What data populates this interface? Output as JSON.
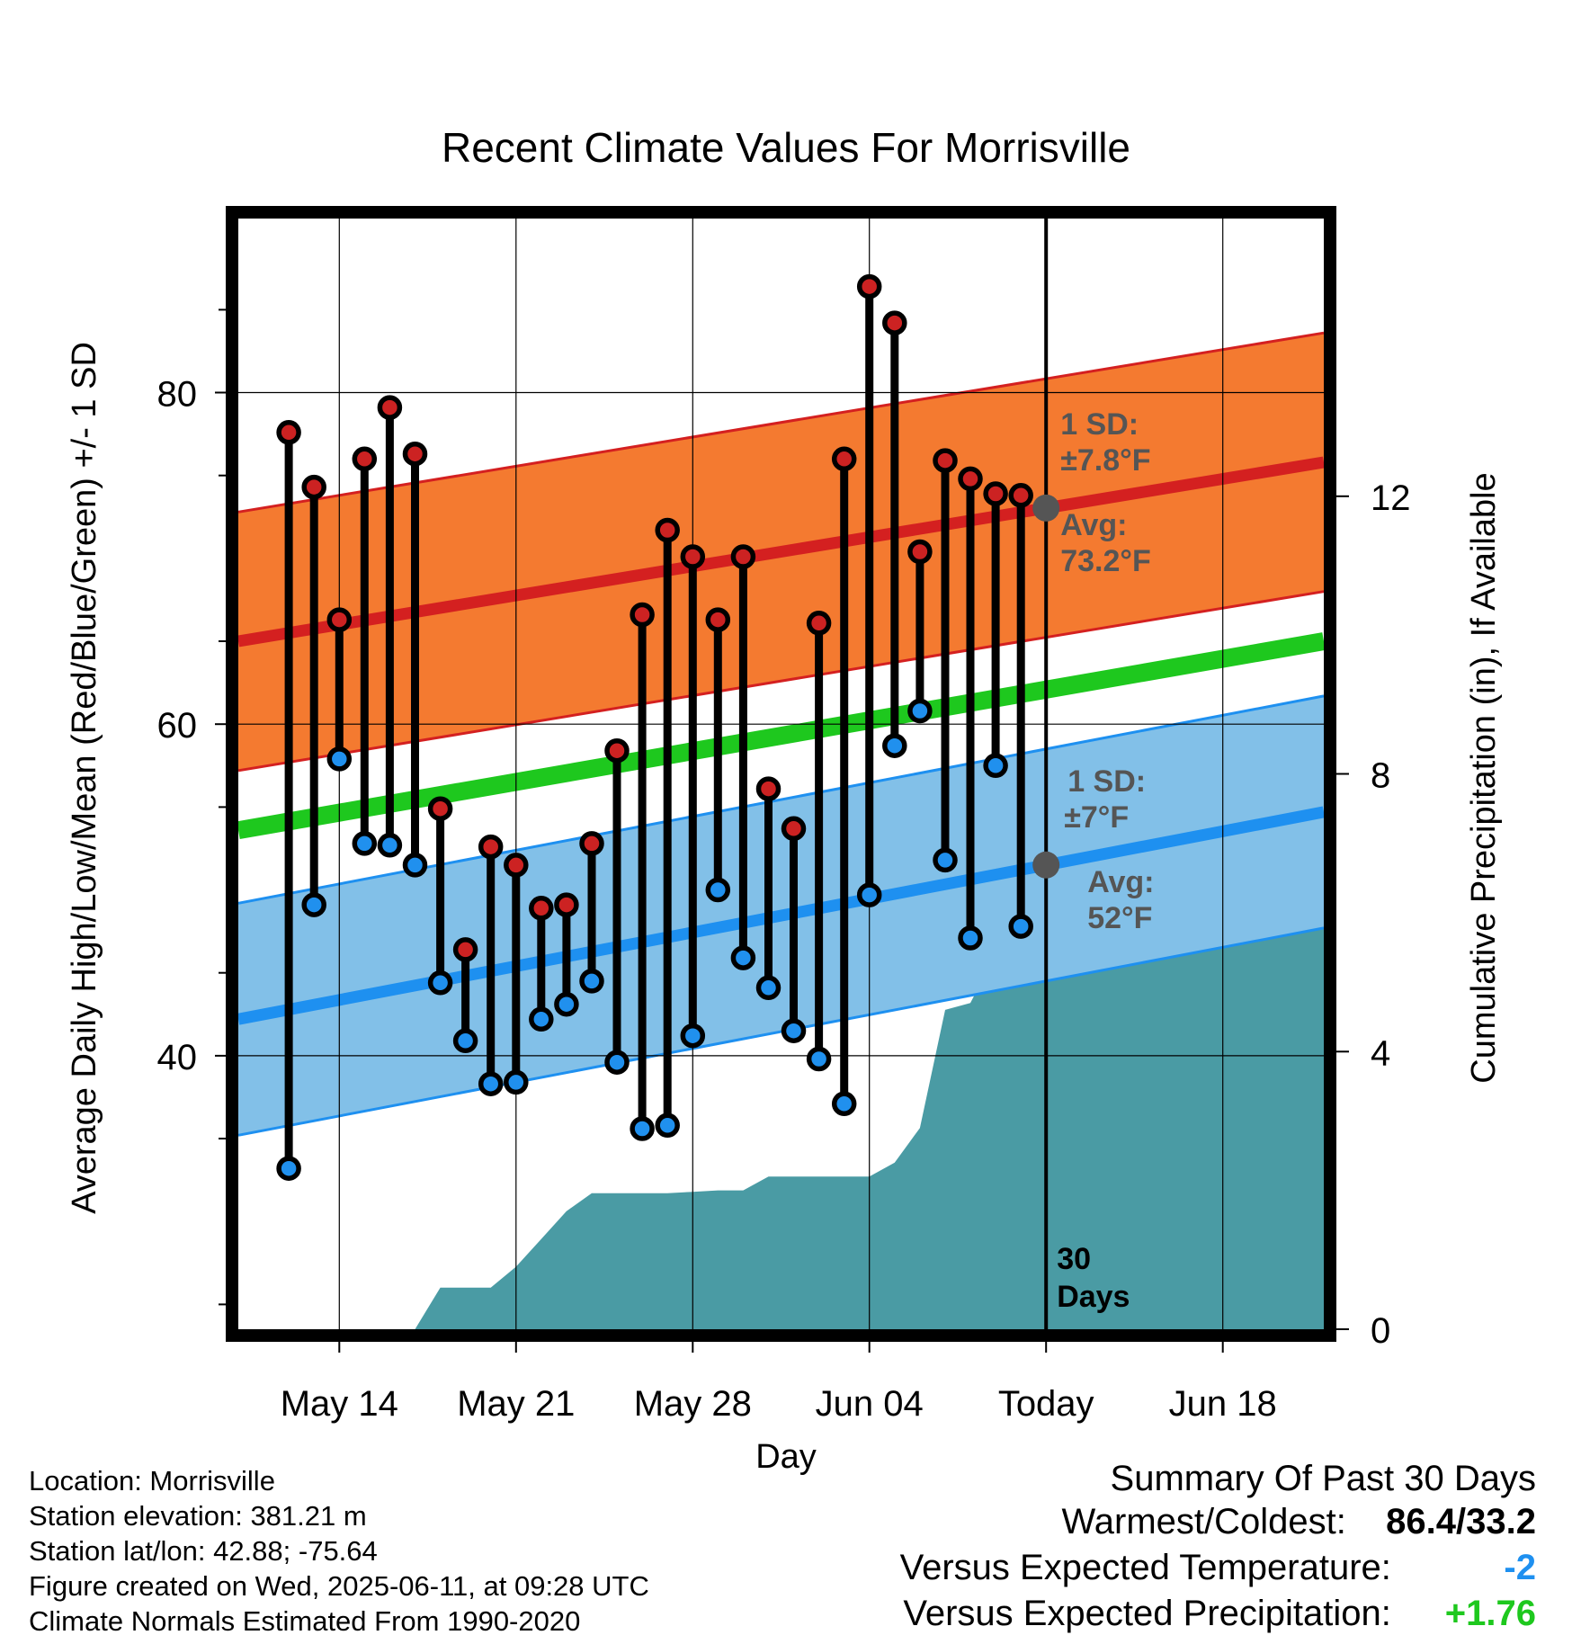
{
  "chart_data": {
    "type": "line",
    "title": "Recent Climate Values For Morrisville",
    "xlabel": "Day",
    "ylabel": "Average Daily High/Low/Mean (Red/Blue/Green) +/- 1 SD",
    "y2label": "Cumulative Precipitation (in), If Available",
    "ylim": [
      23.5,
      90.5
    ],
    "y2lim": [
      0,
      16
    ],
    "xlim": [
      "2025-05-10",
      "2025-06-22"
    ],
    "yticks": [
      40,
      60,
      80
    ],
    "y2ticks": [
      0,
      4,
      8,
      12
    ],
    "xticks": [
      {
        "date": "2025-05-14",
        "label": "May 14"
      },
      {
        "date": "2025-05-21",
        "label": "May 21"
      },
      {
        "date": "2025-05-28",
        "label": "May 28"
      },
      {
        "date": "2025-06-04",
        "label": "Jun 04"
      },
      {
        "date": "2025-06-11",
        "label": "Today"
      },
      {
        "date": "2025-06-18",
        "label": "Jun 18"
      }
    ],
    "grid": true,
    "dates": [
      "2025-05-12",
      "2025-05-13",
      "2025-05-14",
      "2025-05-15",
      "2025-05-16",
      "2025-05-17",
      "2025-05-18",
      "2025-05-19",
      "2025-05-20",
      "2025-05-21",
      "2025-05-22",
      "2025-05-23",
      "2025-05-24",
      "2025-05-25",
      "2025-05-26",
      "2025-05-27",
      "2025-05-28",
      "2025-05-29",
      "2025-05-30",
      "2025-05-31",
      "2025-06-01",
      "2025-06-02",
      "2025-06-03",
      "2025-06-04",
      "2025-06-05",
      "2025-06-06",
      "2025-06-07",
      "2025-06-08",
      "2025-06-09",
      "2025-06-10"
    ],
    "highs": [
      77.6,
      74.3,
      66.3,
      76.0,
      79.1,
      76.3,
      54.9,
      46.4,
      52.6,
      51.5,
      48.9,
      49.1,
      52.8,
      58.4,
      66.6,
      71.7,
      70.1,
      66.3,
      70.1,
      56.1,
      53.7,
      66.1,
      76.0,
      86.4,
      84.2,
      70.4,
      75.9,
      74.8,
      73.9,
      73.8
    ],
    "lows": [
      33.2,
      49.1,
      57.9,
      52.8,
      52.7,
      51.5,
      44.4,
      40.9,
      38.3,
      38.4,
      42.2,
      43.1,
      44.5,
      39.6,
      35.6,
      35.8,
      41.2,
      50.0,
      45.9,
      44.1,
      41.5,
      39.8,
      37.1,
      49.7,
      58.7,
      60.8,
      51.8,
      47.1,
      57.5,
      47.8
    ],
    "normal_high": {
      "start": 65.0,
      "end": 75.8,
      "sd": 7.8
    },
    "normal_mean": {
      "start": 53.6,
      "end": 65.0
    },
    "normal_low": {
      "start": 42.2,
      "end": 54.7,
      "sd": 7
    },
    "precip_cumulative": [
      [
        "2025-05-15",
        0
      ],
      [
        "2025-05-16",
        0
      ],
      [
        "2025-05-17",
        0
      ],
      [
        "2025-05-18",
        0.6
      ],
      [
        "2025-05-19",
        0.6
      ],
      [
        "2025-05-20",
        0.6
      ],
      [
        "2025-05-21",
        0.9
      ],
      [
        "2025-05-22",
        1.3
      ],
      [
        "2025-05-23",
        1.7
      ],
      [
        "2025-05-24",
        1.96
      ],
      [
        "2025-05-25",
        1.96
      ],
      [
        "2025-05-26",
        1.96
      ],
      [
        "2025-05-27",
        1.96
      ],
      [
        "2025-05-28",
        1.98
      ],
      [
        "2025-05-29",
        2.0
      ],
      [
        "2025-05-30",
        2.0
      ],
      [
        "2025-05-31",
        2.2
      ],
      [
        "2025-06-01",
        2.2
      ],
      [
        "2025-06-02",
        2.2
      ],
      [
        "2025-06-03",
        2.2
      ],
      [
        "2025-06-04",
        2.2
      ],
      [
        "2025-06-05",
        2.4
      ],
      [
        "2025-06-06",
        2.9
      ],
      [
        "2025-06-07",
        4.6
      ],
      [
        "2025-06-08",
        4.7
      ],
      [
        "2025-06-09",
        5.4
      ],
      [
        "2025-06-10",
        5.76
      ],
      [
        "2025-06-11",
        5.76
      ],
      [
        "2025-06-22",
        5.76
      ]
    ],
    "annotations": {
      "high_sd": [
        "1 SD:",
        "±7.8°F"
      ],
      "high_avg": [
        "Avg:",
        "73.2°F"
      ],
      "low_sd": [
        "1 SD:",
        "±7°F"
      ],
      "low_avg": [
        "Avg:",
        "52°F"
      ],
      "days": [
        "30",
        "Days"
      ]
    },
    "colors": {
      "high_band": "#f47a30",
      "high_line": "#d42020",
      "mean_line": "#1ec81e",
      "low_band": "#82c0e8",
      "low_line": "#1e90f0",
      "precip": "#4a9ba4",
      "high_dot": "#cc2222",
      "low_dot": "#2090ee"
    }
  },
  "meta": {
    "location": "Location: Morrisville",
    "elevation": "Station elevation: 381.21 m",
    "latlon": "Station lat/lon: 42.88; -75.64",
    "created": "Figure created on Wed, 2025-06-11, at 09:28 UTC",
    "normals": "Climate Normals Estimated From 1990-2020"
  },
  "summary": {
    "title": "Summary Of Past 30 Days",
    "warm_label": "Warmest/Coldest:",
    "warm_value": "86.4/33.2",
    "temp_label": "Versus Expected Temperature:",
    "temp_value": "-2",
    "temp_color": "#1e90f0",
    "precip_label": "Versus Expected Precipitation:",
    "precip_value": "+1.76",
    "precip_color": "#1ec81e"
  }
}
